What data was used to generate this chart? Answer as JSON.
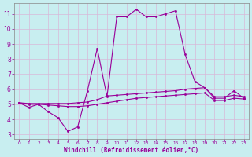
{
  "xlabel": "Windchill (Refroidissement éolien,°C)",
  "bg_color": "#c8eef0",
  "grid_color": "#c0c0c0",
  "line_color": "#990099",
  "xlim": [
    -0.5,
    23.5
  ],
  "ylim": [
    2.7,
    11.7
  ],
  "yticks": [
    3,
    4,
    5,
    6,
    7,
    8,
    9,
    10,
    11
  ],
  "xticks": [
    0,
    1,
    2,
    3,
    4,
    5,
    6,
    7,
    8,
    9,
    10,
    11,
    12,
    13,
    14,
    15,
    16,
    17,
    18,
    19,
    20,
    21,
    22,
    23
  ],
  "hours": [
    0,
    1,
    2,
    3,
    4,
    5,
    6,
    7,
    8,
    9,
    10,
    11,
    12,
    13,
    14,
    15,
    16,
    17,
    18,
    19,
    20,
    21,
    22,
    23
  ],
  "line1": [
    5.1,
    4.8,
    5.0,
    4.5,
    4.1,
    3.2,
    3.5,
    5.9,
    8.7,
    5.5,
    10.8,
    10.8,
    11.3,
    10.8,
    10.8,
    11.0,
    11.2,
    8.3,
    6.5,
    6.1,
    5.4,
    5.4,
    5.9,
    5.4
  ],
  "line2": [
    5.1,
    5.05,
    5.05,
    5.05,
    5.05,
    5.05,
    5.1,
    5.15,
    5.3,
    5.55,
    5.6,
    5.65,
    5.7,
    5.75,
    5.8,
    5.85,
    5.9,
    6.0,
    6.05,
    6.1,
    5.5,
    5.5,
    5.6,
    5.5
  ],
  "line3": [
    5.1,
    5.0,
    5.0,
    4.95,
    4.9,
    4.85,
    4.85,
    4.9,
    5.0,
    5.1,
    5.2,
    5.3,
    5.4,
    5.45,
    5.5,
    5.55,
    5.6,
    5.65,
    5.7,
    5.75,
    5.25,
    5.25,
    5.4,
    5.35
  ]
}
